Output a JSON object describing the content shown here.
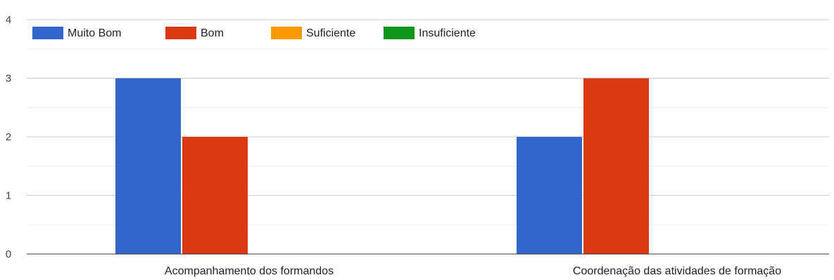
{
  "chart_data": {
    "type": "bar",
    "categories": [
      "Acompanhamento dos formandos",
      "Coordenação das atividades de formação"
    ],
    "series": [
      {
        "name": "Muito Bom",
        "values": [
          3,
          2
        ],
        "color": "#3366cc"
      },
      {
        "name": "Bom",
        "values": [
          2,
          3
        ],
        "color": "#dc3912"
      },
      {
        "name": "Suficiente",
        "values": [
          0,
          0
        ],
        "color": "#ff9900"
      },
      {
        "name": "Insuficiente",
        "values": [
          0,
          0
        ],
        "color": "#109618"
      }
    ],
    "yticks": [
      "0",
      "1",
      "2",
      "3",
      "4"
    ],
    "ylim": [
      0,
      4
    ],
    "grid": true,
    "legend_position": "top-left"
  }
}
